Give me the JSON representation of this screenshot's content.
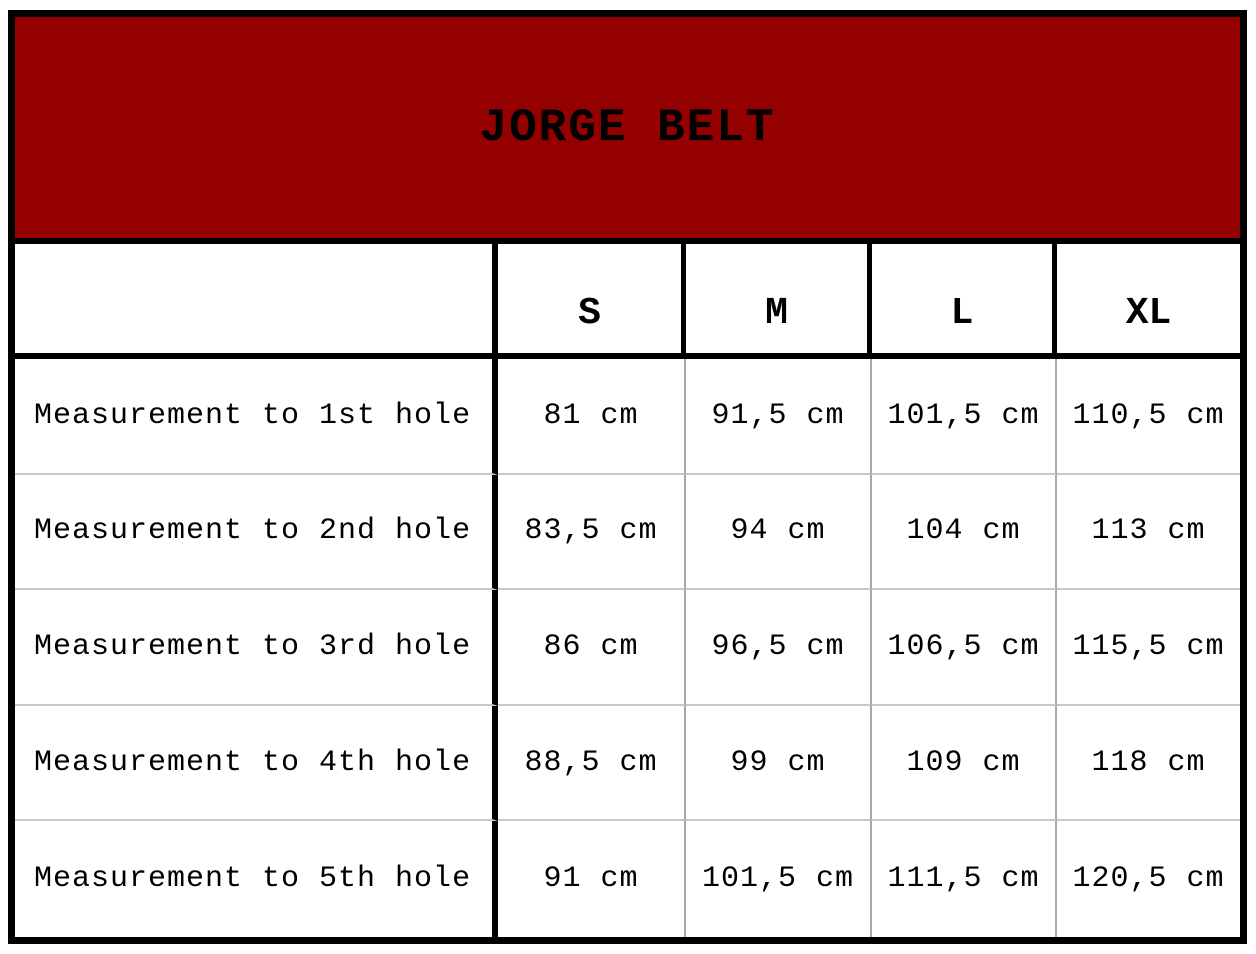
{
  "title": "JORGE BELT",
  "colors": {
    "header_bg": "#940000"
  },
  "columns": [
    "",
    "S",
    "M",
    "L",
    "XL"
  ],
  "rows": [
    {
      "label": "Measurement to 1st hole",
      "values": [
        "81 cm",
        "91,5 cm",
        "101,5 cm",
        "110,5 cm"
      ]
    },
    {
      "label": "Measurement to 2nd hole",
      "values": [
        "83,5 cm",
        "94 cm",
        "104 cm",
        "113 cm"
      ]
    },
    {
      "label": "Measurement to 3rd hole",
      "values": [
        "86 cm",
        "96,5 cm",
        "106,5 cm",
        "115,5 cm"
      ]
    },
    {
      "label": "Measurement to 4th hole",
      "values": [
        "88,5 cm",
        "99 cm",
        "109 cm",
        "118 cm"
      ]
    },
    {
      "label": "Measurement to 5th hole",
      "values": [
        "91 cm",
        "101,5 cm",
        "111,5 cm",
        "120,5 cm"
      ]
    }
  ]
}
